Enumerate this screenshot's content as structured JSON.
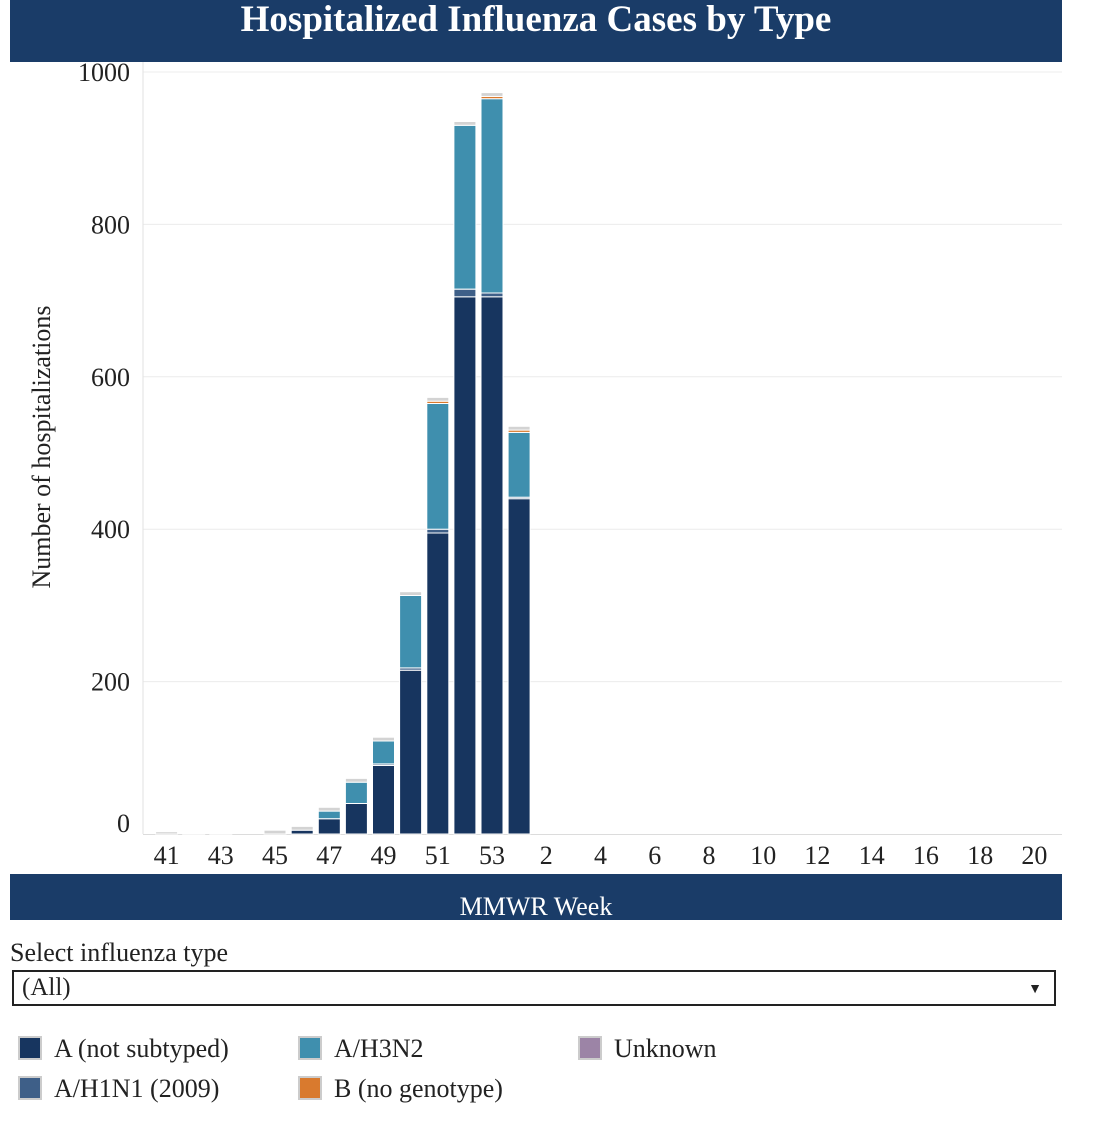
{
  "title": "Hospitalized Influenza Cases by Type",
  "colors": {
    "header_bg": "#1a3c68",
    "a_not_subtyped": "#17355f",
    "a_h1n1_2009": "#3e5f88",
    "a_h3n2": "#3f8fae",
    "b_no_genotype": "#d97a2e",
    "unknown": "#9c84a6",
    "other": "#d3d3d3"
  },
  "filter": {
    "label": "Select influenza type",
    "selected": "(All)"
  },
  "legend": [
    {
      "name": "A (not subtyped)",
      "color": "#17355f"
    },
    {
      "name": "A/H1N1 (2009)",
      "color": "#3e5f88"
    },
    {
      "name": "A/H3N2",
      "color": "#3f8fae"
    },
    {
      "name": "B (no genotype)",
      "color": "#d97a2e"
    },
    {
      "name": "Unknown",
      "color": "#9c84a6"
    }
  ],
  "chart_data": {
    "type": "bar",
    "stacked": true,
    "title": "Hospitalized Influenza Cases by Type",
    "xlabel": "MMWR Week",
    "ylabel": "Number of hospitalizations",
    "ylim": [
      0,
      1000
    ],
    "yticks": [
      0,
      200,
      400,
      600,
      800,
      1000
    ],
    "x_tick_labels": [
      "41",
      "43",
      "45",
      "47",
      "49",
      "51",
      "53",
      "2",
      "4",
      "6",
      "8",
      "10",
      "12",
      "14",
      "16",
      "18",
      "20"
    ],
    "grid": true,
    "categories": [
      "41",
      "42",
      "43",
      "44",
      "45",
      "46",
      "47",
      "48",
      "49",
      "50",
      "51",
      "52",
      "53",
      "1",
      "2",
      "3",
      "4",
      "5",
      "6",
      "7",
      "8",
      "9",
      "10",
      "11",
      "12",
      "13",
      "14",
      "15",
      "16",
      "17",
      "18",
      "19",
      "20"
    ],
    "series": [
      {
        "name": "A (not subtyped)",
        "color": "#17355f",
        "values": [
          0,
          0,
          0,
          0,
          0,
          5,
          20,
          40,
          90,
          215,
          395,
          705,
          705,
          440,
          0,
          0,
          0,
          0,
          0,
          0,
          0,
          0,
          0,
          0,
          0,
          0,
          0,
          0,
          0,
          0,
          0,
          0,
          0
        ]
      },
      {
        "name": "A/H1N1 (2009)",
        "color": "#3e5f88",
        "values": [
          0,
          0,
          0,
          0,
          0,
          0,
          0,
          0,
          2,
          3,
          5,
          10,
          5,
          2,
          0,
          0,
          0,
          0,
          0,
          0,
          0,
          0,
          0,
          0,
          0,
          0,
          0,
          0,
          0,
          0,
          0,
          0,
          0
        ]
      },
      {
        "name": "A/H3N2",
        "color": "#3f8fae",
        "values": [
          0,
          0,
          0,
          0,
          0,
          0,
          10,
          28,
          30,
          95,
          165,
          215,
          255,
          85,
          0,
          0,
          0,
          0,
          0,
          0,
          0,
          0,
          0,
          0,
          0,
          0,
          0,
          0,
          0,
          0,
          0,
          0,
          0
        ]
      },
      {
        "name": "B (no genotype)",
        "color": "#d97a2e",
        "values": [
          0,
          0,
          0,
          0,
          0,
          0,
          0,
          0,
          0,
          0,
          3,
          0,
          3,
          3,
          0,
          0,
          0,
          0,
          0,
          0,
          0,
          0,
          0,
          0,
          0,
          0,
          0,
          0,
          0,
          0,
          0,
          0,
          0
        ]
      },
      {
        "name": "Unknown",
        "color": "#9c84a6",
        "values": [
          0,
          0,
          0,
          0,
          0,
          0,
          0,
          0,
          0,
          0,
          0,
          0,
          0,
          0,
          0,
          0,
          0,
          0,
          0,
          0,
          0,
          0,
          0,
          0,
          0,
          0,
          0,
          0,
          0,
          0,
          0,
          0,
          0
        ]
      },
      {
        "name": "",
        "color": "#d3d3d3",
        "values": [
          3,
          1,
          1,
          0,
          5,
          5,
          5,
          5,
          5,
          5,
          5,
          5,
          5,
          5,
          0,
          0,
          0,
          0,
          0,
          0,
          0,
          0,
          0,
          0,
          0,
          0,
          0,
          0,
          0,
          0,
          0,
          0,
          0
        ]
      }
    ]
  }
}
